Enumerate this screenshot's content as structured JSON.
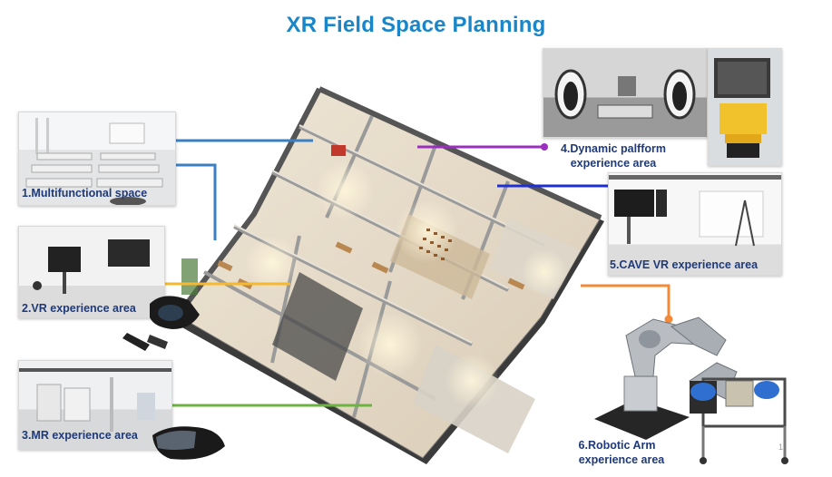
{
  "title": "XR Field Space Planning",
  "areas": [
    {
      "label": "1.Multifunctional space",
      "color": "#3a7fc4"
    },
    {
      "label": "2.VR experience area",
      "color": "#f5b82e"
    },
    {
      "label": "3.MR experience area",
      "color": "#6db33f"
    },
    {
      "label": "4.Dynamic palfform experience area",
      "line1": "4.Dynamic palfform",
      "line2": "experience area",
      "color": "#9b2fc0"
    },
    {
      "label": "5.CAVE VR experience area",
      "color": "#1f2fd6"
    },
    {
      "label": "6.Robotic Arm experience area",
      "line1": "6.Robotic Arm",
      "line2": "experience area",
      "color": "#f28a3a"
    }
  ],
  "page_number": "1"
}
